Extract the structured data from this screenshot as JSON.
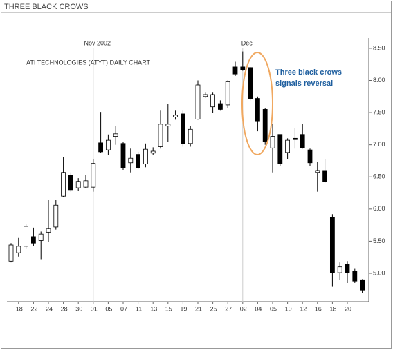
{
  "chart_data": {
    "type": "candlestick",
    "title": "THREE BLACK CROWS",
    "subtitle": "ATI TECHNOLOGIES (ATYT) DAILY CHART",
    "annotations": [
      "Nov 2002",
      "Dec",
      "Three black crows",
      "signals reversal"
    ],
    "annotation_color": "#1f5f9f",
    "highlight_color": "#f0a860",
    "categories": [
      null,
      "18",
      null,
      "22",
      null,
      "24",
      null,
      "28",
      null,
      "30",
      null,
      "01",
      null,
      "05",
      null,
      "07",
      null,
      "11",
      null,
      "13",
      null,
      "15",
      null,
      "19",
      null,
      "21",
      null,
      "25",
      null,
      "27",
      null,
      "02",
      null,
      "04",
      null,
      "05",
      null,
      "10",
      null,
      "12",
      null,
      "16",
      null,
      "18",
      null,
      "20",
      null,
      null
    ],
    "open": [
      5.19,
      5.32,
      5.42,
      5.57,
      5.51,
      5.64,
      5.72,
      6.2,
      6.53,
      6.33,
      6.34,
      6.34,
      7.03,
      6.92,
      7.13,
      7.02,
      6.72,
      6.85,
      6.7,
      6.87,
      6.97,
      7.29,
      7.43,
      7.48,
      7.02,
      7.4,
      7.75,
      7.59,
      7.64,
      7.62,
      8.21,
      8.21,
      8.2,
      7.72,
      7.55,
      6.95,
      7.16,
      6.88,
      7.1,
      7.16,
      6.92,
      6.57,
      6.6,
      5.87,
      5.01,
      5.14,
      5.03,
      4.9
    ],
    "high": [
      5.47,
      5.55,
      5.76,
      5.71,
      5.65,
      6.14,
      6.14,
      6.81,
      6.57,
      6.48,
      6.53,
      6.78,
      7.51,
      7.16,
      7.29,
      7.05,
      6.94,
      6.89,
      7.02,
      6.96,
      7.53,
      7.64,
      7.53,
      7.53,
      7.29,
      8.0,
      7.82,
      7.82,
      7.69,
      8.0,
      8.29,
      8.45,
      8.21,
      7.75,
      7.57,
      7.32,
      7.16,
      7.1,
      7.26,
      7.32,
      6.94,
      6.73,
      6.78,
      5.92,
      5.17,
      5.19,
      5.08,
      4.91
    ],
    "low": [
      5.17,
      5.26,
      5.39,
      5.42,
      5.22,
      5.49,
      5.68,
      6.19,
      6.27,
      6.28,
      6.32,
      6.27,
      6.87,
      6.84,
      7.0,
      6.61,
      6.57,
      6.62,
      6.65,
      6.84,
      6.94,
      7.05,
      7.39,
      6.97,
      6.97,
      7.39,
      7.73,
      7.5,
      7.53,
      7.57,
      8.07,
      8.15,
      7.69,
      7.21,
      7.0,
      6.57,
      6.67,
      6.78,
      6.94,
      6.94,
      6.67,
      6.27,
      6.41,
      4.79,
      4.9,
      4.85,
      4.85,
      4.69
    ],
    "close": [
      5.44,
      5.42,
      5.73,
      5.47,
      5.61,
      5.7,
      6.06,
      6.57,
      6.3,
      6.43,
      6.44,
      6.71,
      6.89,
      7.07,
      7.17,
      6.64,
      6.79,
      6.64,
      6.93,
      6.9,
      7.32,
      7.32,
      7.46,
      7.02,
      7.24,
      7.93,
      7.78,
      7.78,
      7.55,
      7.98,
      8.1,
      8.16,
      7.72,
      7.36,
      7.05,
      7.13,
      6.71,
      7.07,
      7.08,
      6.95,
      6.72,
      6.6,
      6.43,
      5.01,
      5.1,
      5.01,
      4.88,
      4.74
    ],
    "colors": {
      "up": "#ffffff",
      "down": "#000000",
      "outline": "#000000"
    },
    "ylim": [
      4.56,
      8.66
    ],
    "yticks": [
      {
        "value": 5,
        "label": "5.00"
      },
      {
        "value": 5.5,
        "label": "5.50"
      },
      {
        "value": 6,
        "label": "6.00"
      },
      {
        "value": 6.5,
        "label": "6.50"
      },
      {
        "value": 7,
        "label": "7.00"
      },
      {
        "value": 7.5,
        "label": "7.50"
      },
      {
        "value": 8,
        "label": "8.00"
      },
      {
        "value": 8.5,
        "label": "8.50"
      }
    ]
  }
}
